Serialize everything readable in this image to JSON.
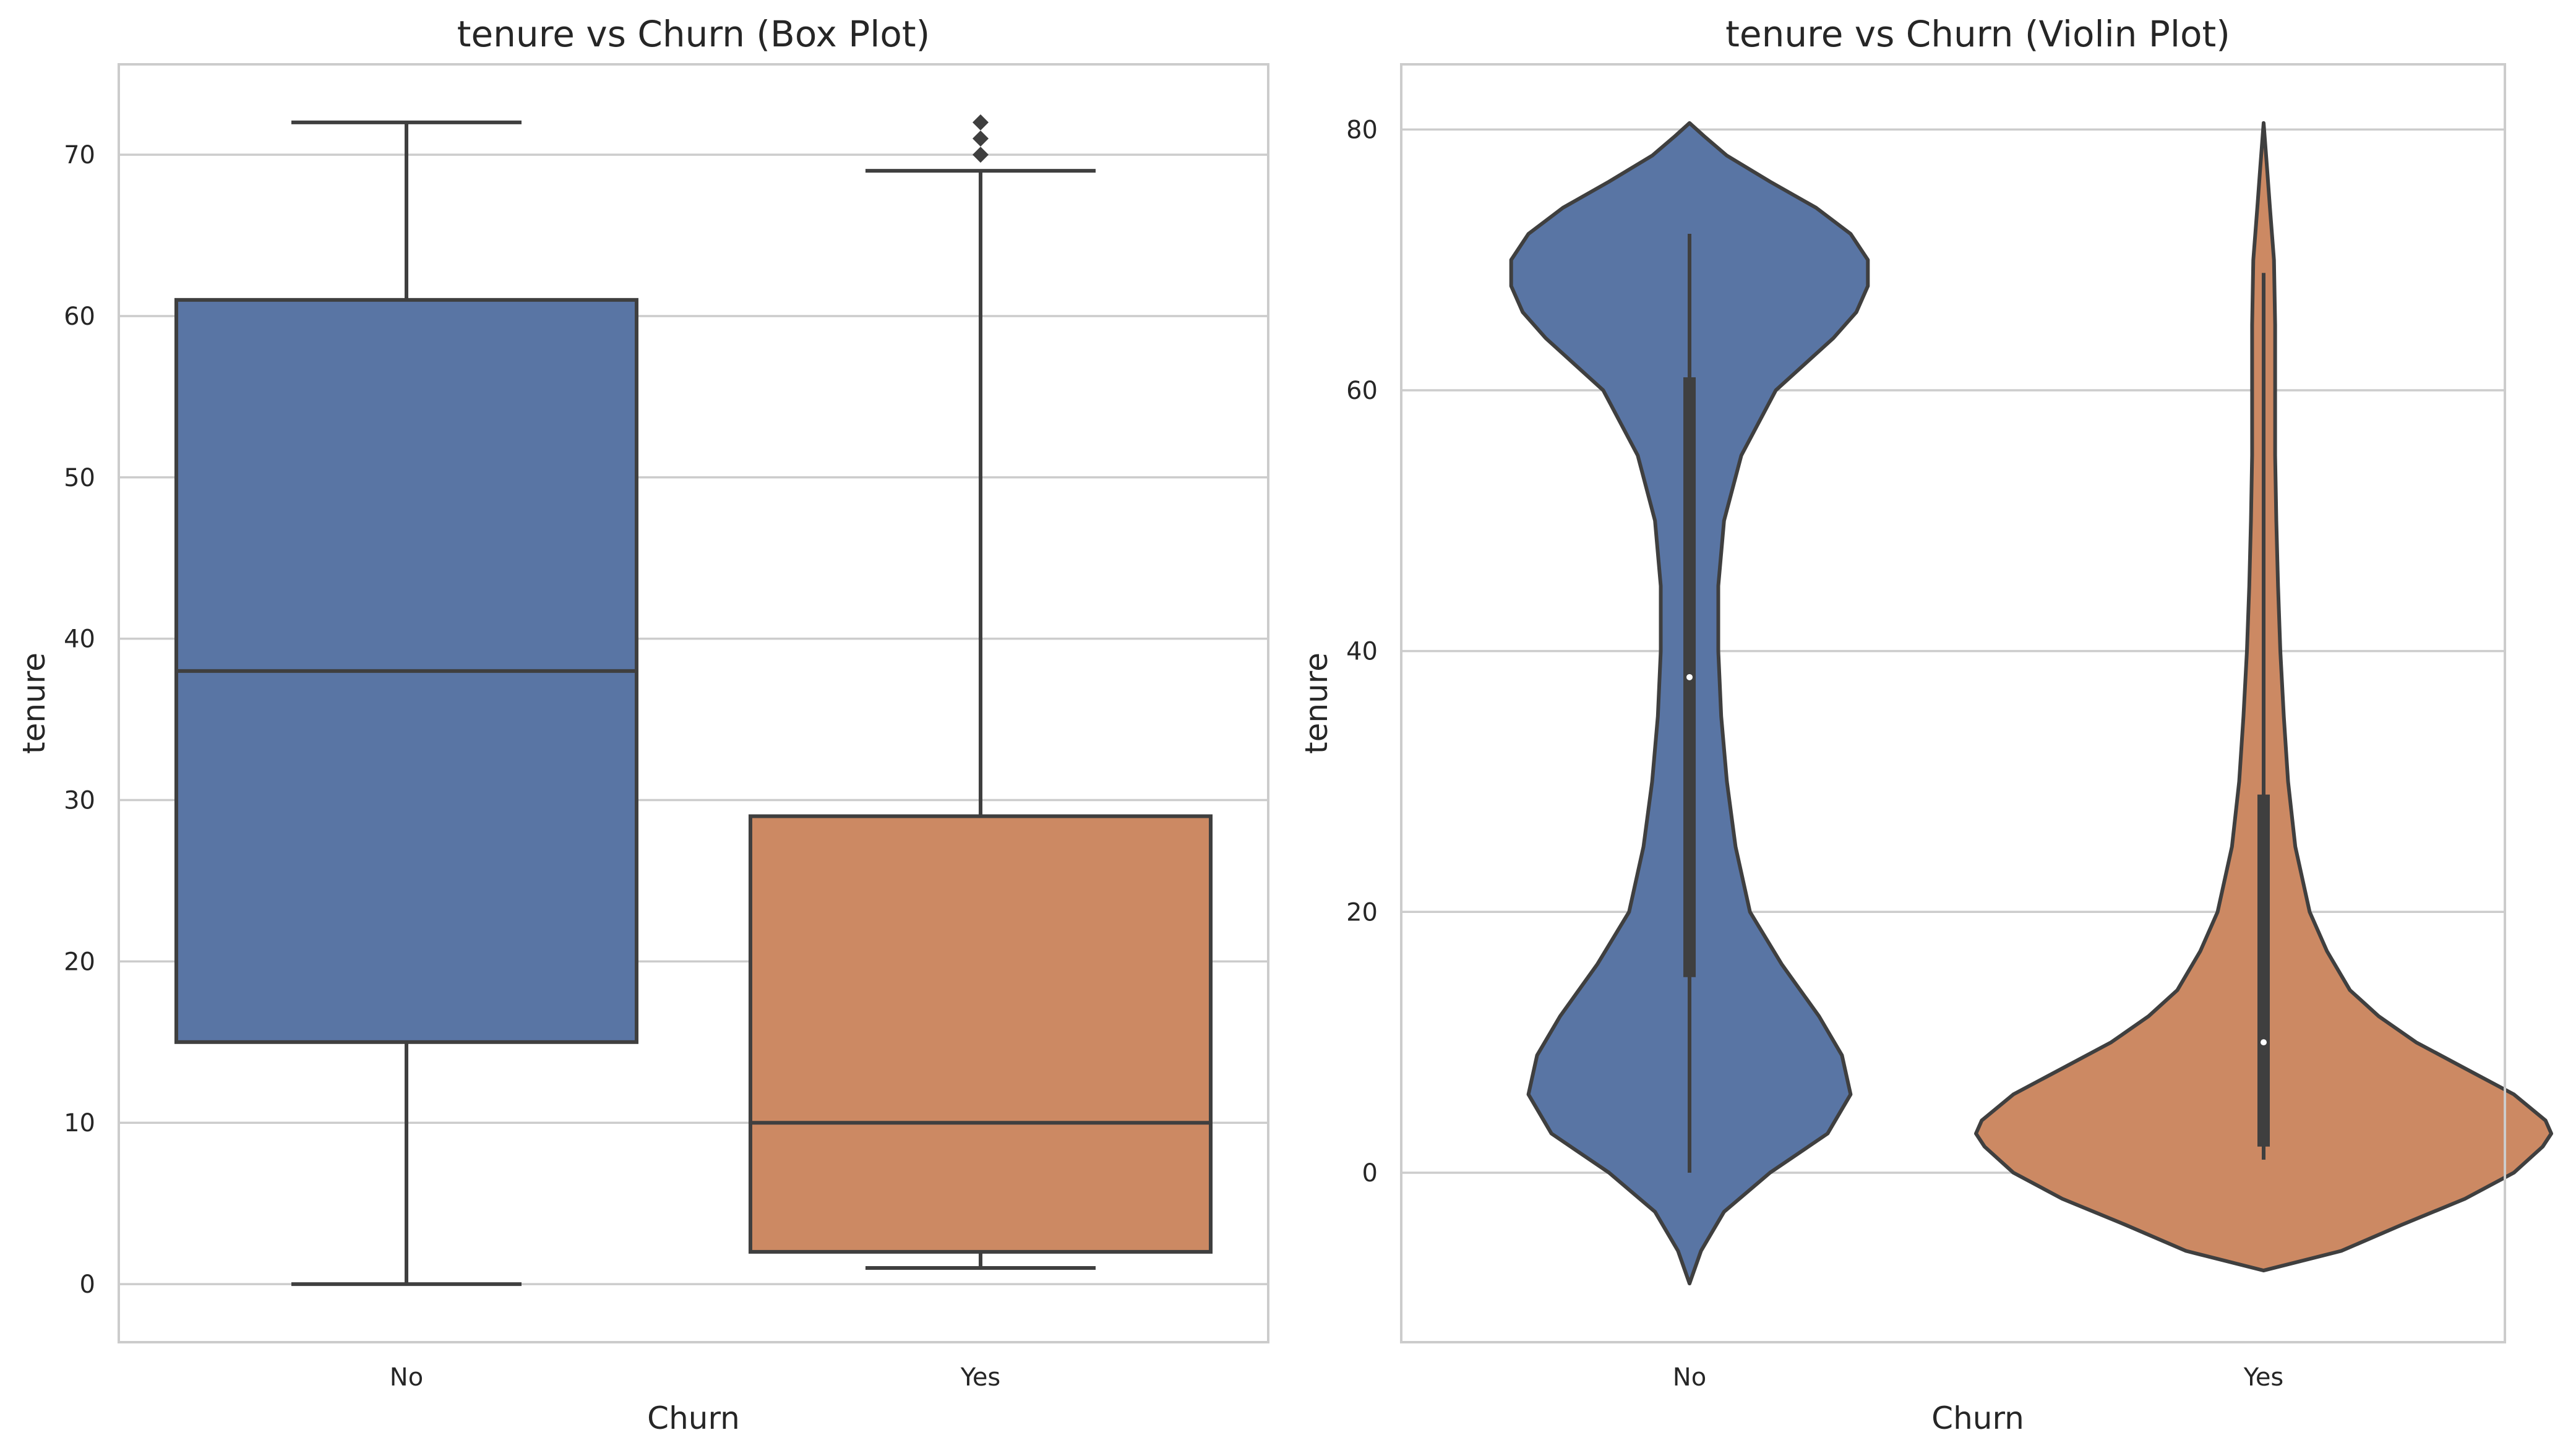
{
  "chart_data": [
    {
      "type": "box",
      "title": "tenure vs Churn (Box Plot)",
      "xlabel": "Churn",
      "ylabel": "tenure",
      "categories": [
        "No",
        "Yes"
      ],
      "ylim": [
        -3.6,
        75.6
      ],
      "yticks": [
        0,
        10,
        20,
        30,
        40,
        50,
        60,
        70
      ],
      "grid": true,
      "colors": [
        "#5975a4",
        "#cc8963"
      ],
      "boxes": [
        {
          "category": "No",
          "whisker_low": 0,
          "q1": 15,
          "median": 38,
          "q3": 61,
          "whisker_high": 72,
          "outliers": []
        },
        {
          "category": "Yes",
          "whisker_low": 1,
          "q1": 2,
          "median": 10,
          "q3": 29,
          "whisker_high": 69,
          "outliers": [
            70,
            71,
            72
          ]
        }
      ]
    },
    {
      "type": "violin",
      "title": "tenure vs Churn (Violin Plot)",
      "xlabel": "Churn",
      "ylabel": "tenure",
      "categories": [
        "No",
        "Yes"
      ],
      "ylim": [
        -13,
        85
      ],
      "yticks": [
        0,
        20,
        40,
        60,
        80
      ],
      "grid": true,
      "colors": [
        "#5975a4",
        "#cc8963"
      ],
      "violins": [
        {
          "category": "No",
          "median": 38,
          "q1": 15,
          "q3": 61,
          "min": 0,
          "max": 72,
          "density": [
            [
              -8.5,
              0.0
            ],
            [
              -6,
              0.04
            ],
            [
              -3,
              0.12
            ],
            [
              0,
              0.28
            ],
            [
              3,
              0.48
            ],
            [
              6,
              0.56
            ],
            [
              9,
              0.53
            ],
            [
              12,
              0.45
            ],
            [
              16,
              0.32
            ],
            [
              20,
              0.21
            ],
            [
              25,
              0.16
            ],
            [
              30,
              0.13
            ],
            [
              35,
              0.11
            ],
            [
              40,
              0.1
            ],
            [
              45,
              0.1
            ],
            [
              50,
              0.12
            ],
            [
              55,
              0.18
            ],
            [
              60,
              0.3
            ],
            [
              64,
              0.5
            ],
            [
              66,
              0.58
            ],
            [
              68,
              0.62
            ],
            [
              70,
              0.62
            ],
            [
              72,
              0.56
            ],
            [
              74,
              0.44
            ],
            [
              76,
              0.28
            ],
            [
              78,
              0.13
            ],
            [
              79.5,
              0.05
            ],
            [
              80.5,
              0.0
            ]
          ]
        },
        {
          "category": "Yes",
          "median": 10,
          "q1": 2,
          "q3": 29,
          "min": 1,
          "max": 69,
          "density": [
            [
              -7.5,
              0.0
            ],
            [
              -6,
              0.27
            ],
            [
              -4,
              0.48
            ],
            [
              -2,
              0.7
            ],
            [
              0,
              0.87
            ],
            [
              2,
              0.97
            ],
            [
              3,
              1.0
            ],
            [
              4,
              0.98
            ],
            [
              6,
              0.87
            ],
            [
              8,
              0.7
            ],
            [
              10,
              0.53
            ],
            [
              12,
              0.4
            ],
            [
              14,
              0.3
            ],
            [
              17,
              0.22
            ],
            [
              20,
              0.16
            ],
            [
              25,
              0.11
            ],
            [
              30,
              0.085
            ],
            [
              35,
              0.07
            ],
            [
              40,
              0.058
            ],
            [
              45,
              0.05
            ],
            [
              50,
              0.044
            ],
            [
              55,
              0.04
            ],
            [
              60,
              0.04
            ],
            [
              65,
              0.04
            ],
            [
              70,
              0.036
            ],
            [
              74,
              0.022
            ],
            [
              77,
              0.012
            ],
            [
              80.5,
              0.0
            ]
          ]
        }
      ]
    }
  ]
}
